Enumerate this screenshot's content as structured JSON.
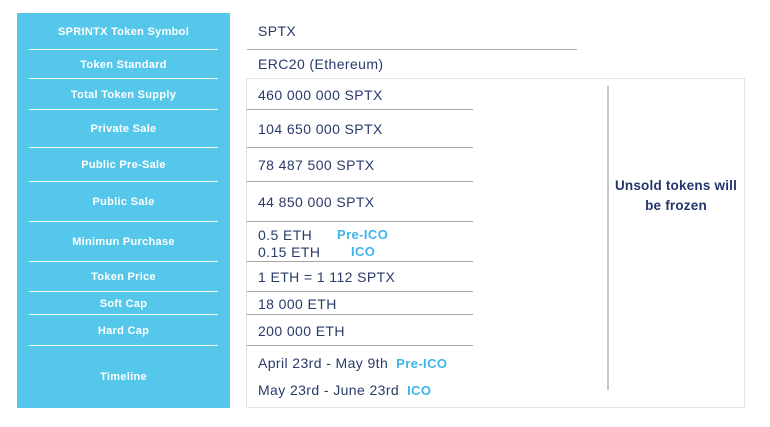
{
  "colors": {
    "sidebar_bg": "#55C7EB",
    "text_navy": "#293A6B",
    "accent_cyan": "#3EB5EA",
    "row_line_gray": "#A6A6A6",
    "box_border_gray": "#E3E3E3",
    "divider_gray": "#C9C9C9"
  },
  "sidebar": {
    "rows": [
      "SPRINTX Token Symbol",
      "Token Standard",
      "Total Token Supply",
      "Private Sale",
      "Public Pre-Sale",
      "Public Sale",
      "Minimun Purchase",
      "Token Price",
      "Soft Cap",
      "Hard Cap",
      "Timeline"
    ]
  },
  "values": {
    "token_symbol": "SPTX",
    "token_standard": "ERC20 (Ethereum)",
    "total_token_supply": "460 000 000 SPTX",
    "private_sale": "104 650 000 SPTX",
    "public_pre_sale": "78 487 500 SPTX",
    "public_sale": "44 850 000 SPTX",
    "min_purchase_pre_ico": "0.5 ETH",
    "min_purchase_pre_ico_label": "Pre-ICO",
    "min_purchase_ico": "0.15 ETH",
    "min_purchase_ico_label": "ICO",
    "token_price": "1 ETH = 1 112 SPTX",
    "soft_cap": "18 000 ETH",
    "hard_cap": "200 000 ETH",
    "timeline_pre_ico": "April 23rd -  May 9th",
    "timeline_pre_ico_label": "Pre-ICO",
    "timeline_ico": "May 23rd - June 23rd",
    "timeline_ico_label": "ICO"
  },
  "note": {
    "text": "Unsold tokens will be frozen"
  }
}
